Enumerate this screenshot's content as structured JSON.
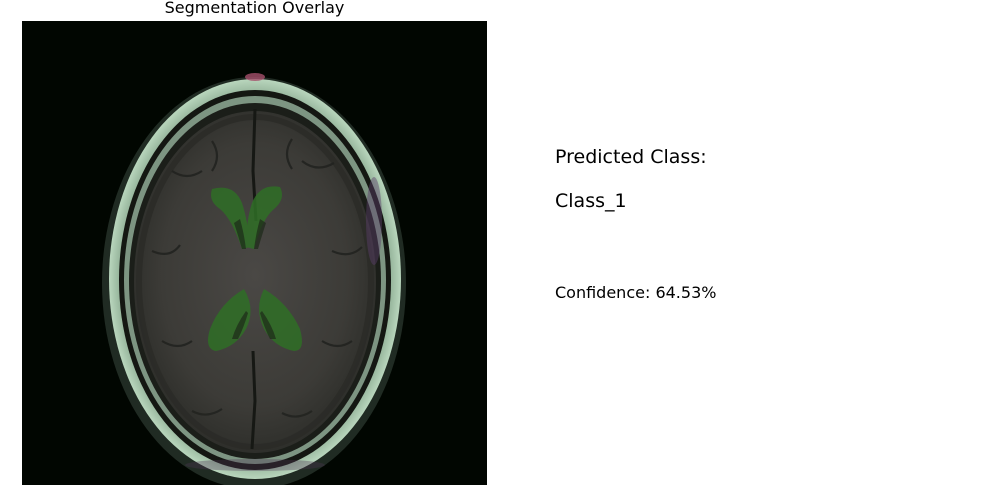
{
  "figure": {
    "title": "Segmentation Overlay"
  },
  "prediction": {
    "label": "Predicted Class:",
    "value": "Class_1",
    "confidence_text": "Confidence: 64.53%",
    "confidence_percent": 64.53
  },
  "colors": {
    "background": "#ffffff",
    "image_background": "#010601",
    "skull_rim": "#9fc4a8",
    "brain_tissue": "#3d3d38",
    "overlay_mask": "#2f6e26"
  }
}
